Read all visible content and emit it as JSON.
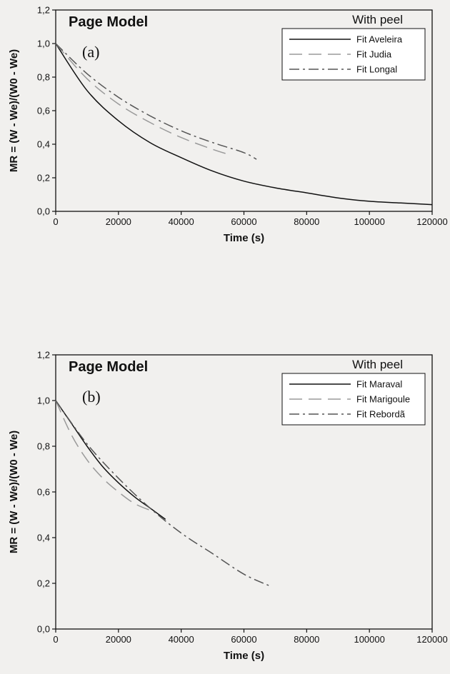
{
  "chart_data": [
    {
      "type": "line",
      "title": "Page Model",
      "panel_label": "(a)",
      "annotation": "With peel",
      "xlabel": "Time (s)",
      "ylabel": "MR = (W - We)/(W0 - We)",
      "xlim": [
        0,
        120000
      ],
      "ylim": [
        0,
        1.2
      ],
      "x_ticks": [
        "0",
        "20000",
        "40000",
        "60000",
        "80000",
        "100000",
        "120000"
      ],
      "y_ticks": [
        "0,0",
        "0,2",
        "0,4",
        "0,6",
        "0,8",
        "1,0",
        "1,2"
      ],
      "grid": false,
      "legend_position": "top-right",
      "series": [
        {
          "name": "Fit Aveleira",
          "style": "solid",
          "color": "#111111",
          "x": [
            0,
            10000,
            20000,
            30000,
            40000,
            50000,
            60000,
            70000,
            80000,
            90000,
            100000,
            110000,
            120000
          ],
          "y": [
            1.0,
            0.72,
            0.54,
            0.41,
            0.32,
            0.24,
            0.18,
            0.14,
            0.11,
            0.08,
            0.06,
            0.05,
            0.04
          ]
        },
        {
          "name": "Fit Judia",
          "style": "dashed",
          "color": "#9a9a9a",
          "x": [
            0,
            10000,
            20000,
            30000,
            40000,
            50000,
            55000
          ],
          "y": [
            1.0,
            0.79,
            0.64,
            0.53,
            0.44,
            0.37,
            0.34
          ]
        },
        {
          "name": "Fit Longal",
          "style": "dashdot",
          "color": "#555555",
          "x": [
            0,
            10000,
            20000,
            30000,
            40000,
            50000,
            60000,
            64000
          ],
          "y": [
            1.0,
            0.82,
            0.68,
            0.57,
            0.48,
            0.41,
            0.35,
            0.31
          ]
        }
      ]
    },
    {
      "type": "line",
      "title": "Page Model",
      "panel_label": "(b)",
      "annotation": "With peel",
      "xlabel": "Time (s)",
      "ylabel": "MR = (W - We)/(W0 - We)",
      "xlim": [
        0,
        120000
      ],
      "ylim": [
        0,
        1.2
      ],
      "x_ticks": [
        "0",
        "20000",
        "40000",
        "60000",
        "80000",
        "100000",
        "120000"
      ],
      "y_ticks": [
        "0,0",
        "0,2",
        "0,4",
        "0,6",
        "0,8",
        "1,0",
        "1,2"
      ],
      "grid": false,
      "legend_position": "top-right",
      "series": [
        {
          "name": "Fit Maraval",
          "style": "solid",
          "color": "#111111",
          "x": [
            0,
            5000,
            10000,
            15000,
            20000,
            25000,
            30000,
            35000
          ],
          "y": [
            1.0,
            0.9,
            0.8,
            0.71,
            0.64,
            0.58,
            0.53,
            0.48
          ]
        },
        {
          "name": "Fit Marigoule",
          "style": "dashed",
          "color": "#9a9a9a",
          "x": [
            0,
            5000,
            10000,
            15000,
            20000,
            25000,
            30000
          ],
          "y": [
            1.0,
            0.85,
            0.74,
            0.66,
            0.6,
            0.55,
            0.52
          ]
        },
        {
          "name": "Fit Rebordã",
          "style": "dashdot",
          "color": "#555555",
          "x": [
            0,
            10000,
            20000,
            30000,
            40000,
            50000,
            60000,
            68000
          ],
          "y": [
            1.0,
            0.81,
            0.66,
            0.53,
            0.42,
            0.33,
            0.24,
            0.19
          ]
        }
      ]
    }
  ]
}
